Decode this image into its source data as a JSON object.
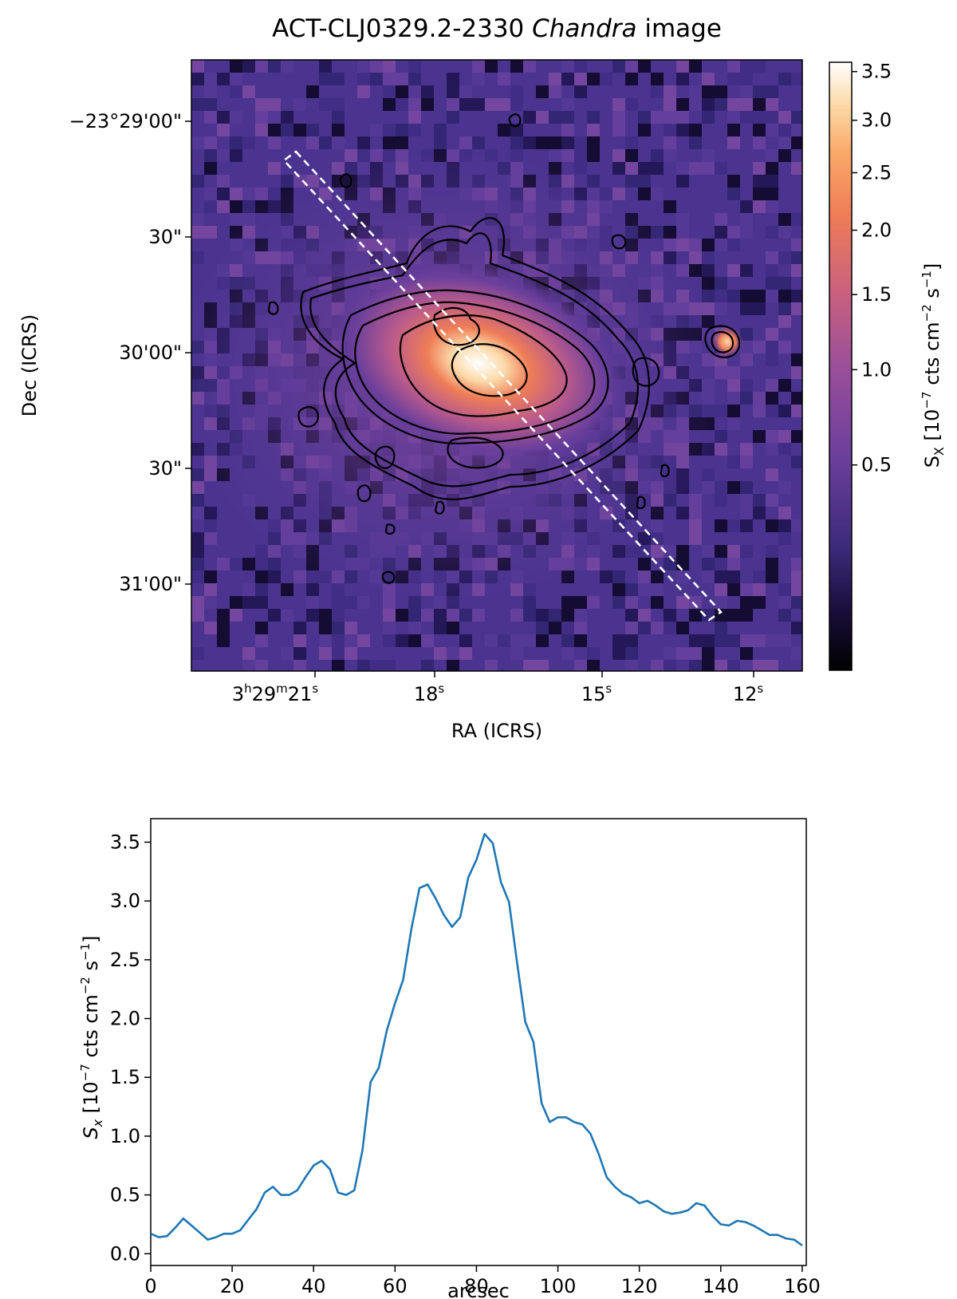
{
  "chart_data": [
    {
      "type": "heatmap",
      "title_main": "ACT-CLJ0329.2-2330",
      "title_italic": "Chandra",
      "title_tail": "image",
      "xlabel": "RA (ICRS)",
      "ylabel": "Dec (ICRS)",
      "x_ticks": [
        {
          "h": "3",
          "m": "29",
          "s": "21"
        },
        {
          "h": "",
          "m": "",
          "s": "18"
        },
        {
          "h": "",
          "m": "",
          "s": "15"
        },
        {
          "h": "",
          "m": "",
          "s": "12"
        }
      ],
      "y_ticks": [
        "−23°29'00\"",
        "30\"",
        "30'00\"",
        "30\"",
        "31'00\""
      ],
      "colorbar": {
        "label_main": "S",
        "label_sub": "X",
        "label_unit": "[10",
        "label_exp1": "−7",
        "label_mid": "cts cm",
        "label_exp2": "−2",
        "label_mid2": "s",
        "label_exp3": "−1",
        "label_end": "]",
        "ticks": [
          "3.5",
          "3.0",
          "2.5",
          "2.0",
          "1.5",
          "1.0",
          "0.5"
        ],
        "tick_values": [
          3.5,
          3.0,
          2.5,
          2.0,
          1.5,
          1.0,
          0.5
        ],
        "vmax": 3.6,
        "colors": [
          "#000000",
          "#1a0f3d",
          "#3b2a7a",
          "#6b3f9c",
          "#9b4f9a",
          "#c9607e",
          "#ef7d57",
          "#f9a868",
          "#fcd9a8",
          "#ffffff"
        ]
      }
    },
    {
      "type": "line",
      "xlabel": "arcsec",
      "ylabel_main": "S",
      "ylabel_sub": "x",
      "ylabel_unit": "[10",
      "ylabel_exp1": "−7",
      "ylabel_mid": "cts cm",
      "ylabel_exp2": "−2",
      "ylabel_mid2": "s",
      "ylabel_exp3": "−1",
      "ylabel_end": "]",
      "xlim": [
        0,
        161
      ],
      "ylim": [
        -0.1,
        3.7
      ],
      "x_ticks": [
        0,
        20,
        40,
        60,
        80,
        100,
        120,
        140,
        160
      ],
      "y_ticks": [
        0.0,
        0.5,
        1.0,
        1.5,
        2.0,
        2.5,
        3.0,
        3.5
      ],
      "x_tick_labels": [
        "0",
        "20",
        "40",
        "60",
        "80",
        "100",
        "120",
        "140",
        "160"
      ],
      "y_tick_labels": [
        "0.0",
        "0.5",
        "1.0",
        "1.5",
        "2.0",
        "2.5",
        "3.0",
        "3.5"
      ],
      "color": "#1f77b4",
      "series": [
        {
          "x": [
            0,
            2,
            4,
            6,
            8,
            10,
            12,
            14,
            16,
            18,
            20,
            22,
            24,
            26,
            28,
            30,
            32,
            34,
            36,
            38,
            40,
            42,
            44,
            46,
            48,
            50,
            52,
            54,
            56,
            58,
            60,
            62,
            64,
            66,
            68,
            70,
            72,
            74,
            76,
            78,
            80,
            82,
            84,
            86,
            88,
            90,
            92,
            94,
            96,
            98,
            100,
            102,
            104,
            106,
            108,
            110,
            112,
            114,
            116,
            118,
            120,
            122,
            124,
            126,
            128,
            130,
            132,
            134,
            136,
            138,
            140,
            142,
            144,
            146,
            148,
            150,
            152,
            154,
            156,
            158,
            160
          ],
          "y": [
            0.17,
            0.14,
            0.15,
            0.22,
            0.3,
            0.24,
            0.18,
            0.12,
            0.14,
            0.17,
            0.17,
            0.2,
            0.29,
            0.38,
            0.52,
            0.57,
            0.5,
            0.5,
            0.54,
            0.65,
            0.75,
            0.79,
            0.72,
            0.52,
            0.5,
            0.54,
            0.88,
            1.46,
            1.58,
            1.9,
            2.13,
            2.33,
            2.76,
            3.11,
            3.14,
            3.02,
            2.88,
            2.78,
            2.86,
            3.2,
            3.35,
            3.57,
            3.49,
            3.16,
            2.99,
            2.47,
            1.97,
            1.8,
            1.28,
            1.12,
            1.16,
            1.16,
            1.12,
            1.1,
            1.02,
            0.85,
            0.65,
            0.57,
            0.51,
            0.48,
            0.43,
            0.45,
            0.41,
            0.36,
            0.34,
            0.35,
            0.37,
            0.43,
            0.41,
            0.32,
            0.25,
            0.24,
            0.28,
            0.27,
            0.24,
            0.2,
            0.16,
            0.16,
            0.13,
            0.12,
            0.07
          ]
        }
      ]
    }
  ]
}
